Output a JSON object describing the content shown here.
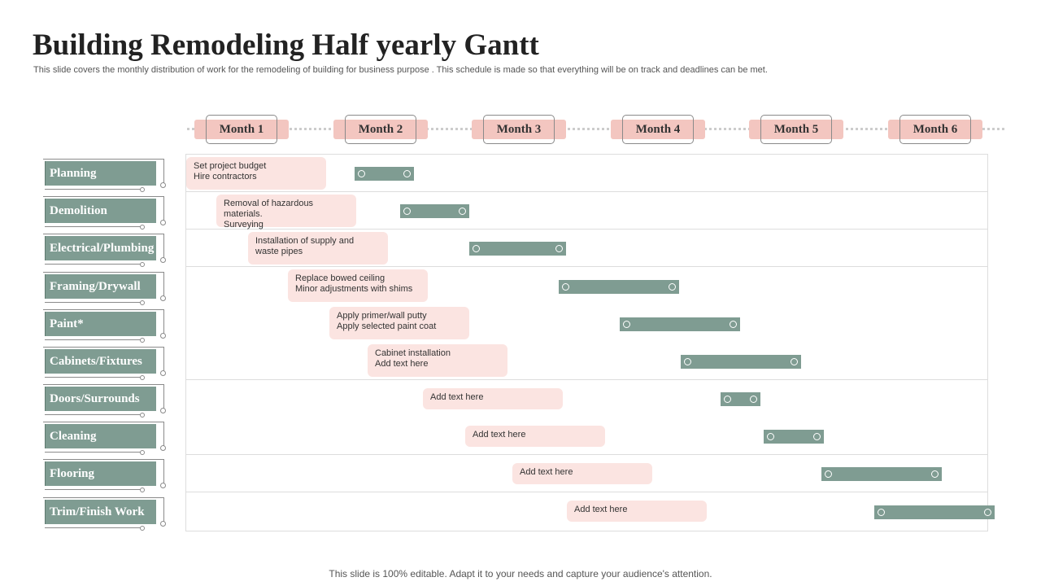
{
  "title": "Building Remodeling Half yearly Gantt",
  "subtitle": "This slide covers the monthly distribution of work for the remodeling of building  for business purpose . This schedule is made so that everything will be on track and deadlines can be met.",
  "months": [
    "Month 1",
    "Month 2",
    "Month 3",
    "Month 4",
    "Month 5",
    "Month 6"
  ],
  "tasks": [
    {
      "label": "Planning",
      "notes": [
        "Set project budget",
        "Hire contractors"
      ],
      "start": 1.15,
      "end": 1.58
    },
    {
      "label": "Demolition",
      "notes": [
        "Removal of hazardous",
        "materials.",
        "Surveying"
      ],
      "start": 1.48,
      "end": 1.98
    },
    {
      "label": "Electrical/Plumbing",
      "notes": [
        "Installation of supply and",
        "waste pipes"
      ],
      "start": 1.98,
      "end": 2.68
    },
    {
      "label": "Framing/Drywall",
      "notes": [
        "Replace bowed ceiling",
        "Minor adjustments with shims"
      ],
      "start": 2.63,
      "end": 3.5
    },
    {
      "label": "Paint*",
      "notes": [
        "Apply primer/wall putty",
        "Apply selected paint coat"
      ],
      "start": 3.07,
      "end": 3.94
    },
    {
      "label": "Cabinets/Fixtures",
      "notes": [
        "Cabinet  installation",
        "Add text here"
      ],
      "start": 3.51,
      "end": 4.38
    },
    {
      "label": "Doors/Surrounds",
      "notes": [
        "Add text here"
      ],
      "start": 3.8,
      "end": 4.09
    },
    {
      "label": "Cleaning",
      "notes": [
        "Add text here"
      ],
      "start": 4.11,
      "end": 4.55
    },
    {
      "label": "Flooring",
      "notes": [
        "Add text here"
      ],
      "start": 4.53,
      "end": 5.4
    },
    {
      "label": "Trim/Finish Work",
      "notes": [
        "Add text here"
      ],
      "start": 4.91,
      "end": 5.78
    }
  ],
  "colors": {
    "bar": "#7f9c92",
    "month_pill": "#f3c6c0",
    "note_bg": "#fbe4e1"
  },
  "footer": "This slide is 100% editable. Adapt it to your needs and capture your audience's attention."
}
